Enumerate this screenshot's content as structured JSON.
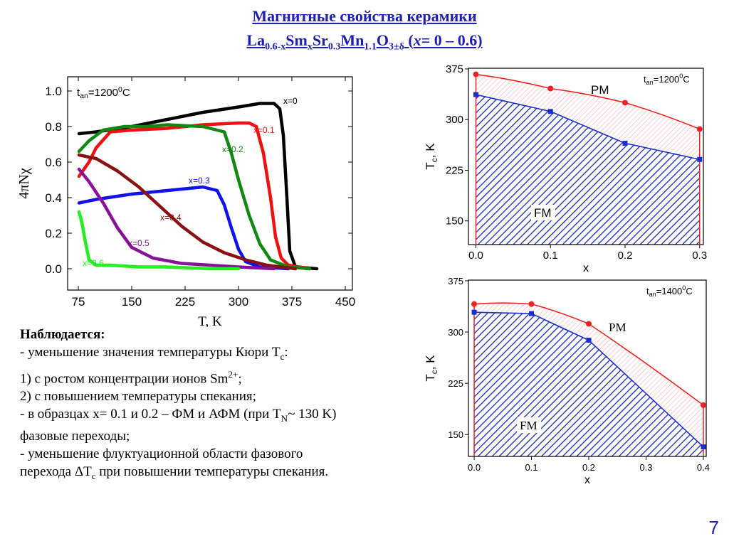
{
  "title": {
    "line1": "Магнитные  свойства керамики",
    "f_la": "La",
    "f_la_sub": "0.6-x",
    "f_sm": "Sm",
    "f_sm_sub": "x",
    "f_sr": "Sr",
    "f_sr_sub": "0.3",
    "f_mn": "Mn",
    "f_mn_sub": "1.1",
    "f_o": "O",
    "f_o_sub": "3±δ",
    "range_open": " (",
    "range_var": "x",
    "range_text": "= 0 – 0.6)"
  },
  "notes": {
    "heading": "Наблюдается:",
    "l1": "- уменьшение значения температуры Кюри T",
    "l1_sub": "c",
    "l1_end": ":",
    "l2": "1)   с ростом концентрации ионов Sm",
    "l2_sup": "2+",
    "l2_end": ";",
    "l3": "2)   с повышением температуры спекания;",
    "l4": "- в образцах x= 0.1 и 0.2 – ФМ и АФМ (при T",
    "l4_sub": "N",
    "l4_end": "~ 130 K)",
    "l5": "фазовые переходы;",
    "l6": "- уменьшение флуктуационной области фазового",
    "l7": "перехода ΔT",
    "l7_sub": "c",
    "l7_end": " при повышении температуры спекания."
  },
  "page_number": "7",
  "chart_data": [
    {
      "type": "line",
      "xlabel": "T, K",
      "ylabel": "4πNχ",
      "annotation": "t_an=1200°C",
      "annotation_main": "t",
      "annotation_sub": "an",
      "annotation_rest": "=1200",
      "annotation_sup": "0",
      "annotation_unit": "C",
      "xlim": [
        60,
        460
      ],
      "ylim": [
        -0.12,
        1.08
      ],
      "xticks": [
        "75",
        "150",
        "225",
        "300",
        "375",
        "450"
      ],
      "yticks": [
        "0.0",
        "0.2",
        "0.4",
        "0.6",
        "0.8",
        "1.0"
      ],
      "series": [
        {
          "name": "x=0",
          "color": "#000000",
          "x": [
            76,
            100,
            150,
            200,
            250,
            300,
            330,
            350,
            358,
            363,
            368,
            372,
            380,
            410
          ],
          "y": [
            0.76,
            0.77,
            0.8,
            0.84,
            0.88,
            0.91,
            0.93,
            0.93,
            0.9,
            0.75,
            0.4,
            0.1,
            0.01,
            0.0
          ]
        },
        {
          "name": "x=0.1",
          "color": "#ee1111",
          "x": [
            76,
            90,
            100,
            120,
            150,
            200,
            250,
            300,
            315,
            325,
            335,
            345,
            352,
            360,
            370,
            400
          ],
          "y": [
            0.52,
            0.6,
            0.68,
            0.77,
            0.78,
            0.79,
            0.81,
            0.82,
            0.82,
            0.8,
            0.65,
            0.4,
            0.18,
            0.06,
            0.02,
            0.0
          ]
        },
        {
          "name": "x=0.2",
          "color": "#118811",
          "x": [
            76,
            90,
            110,
            140,
            170,
            200,
            250,
            280,
            290,
            300,
            315,
            330,
            345,
            370,
            400
          ],
          "y": [
            0.66,
            0.72,
            0.78,
            0.8,
            0.8,
            0.81,
            0.8,
            0.77,
            0.65,
            0.5,
            0.3,
            0.14,
            0.05,
            0.01,
            0.0
          ]
        },
        {
          "name": "x=0.3",
          "color": "#1111ee",
          "x": [
            76,
            100,
            150,
            200,
            250,
            270,
            280,
            290,
            300,
            310,
            330,
            370
          ],
          "y": [
            0.37,
            0.39,
            0.42,
            0.44,
            0.46,
            0.44,
            0.36,
            0.23,
            0.11,
            0.04,
            0.01,
            0.0
          ]
        },
        {
          "name": "x=0.4",
          "color": "#881111",
          "x": [
            76,
            100,
            130,
            160,
            190,
            220,
            250,
            280,
            310,
            340,
            380
          ],
          "y": [
            0.64,
            0.62,
            0.55,
            0.46,
            0.35,
            0.24,
            0.15,
            0.09,
            0.05,
            0.02,
            0.0
          ]
        },
        {
          "name": "x=0.5",
          "color": "#881199",
          "x": [
            76,
            90,
            110,
            130,
            150,
            180,
            220,
            260,
            300,
            350
          ],
          "y": [
            0.56,
            0.49,
            0.37,
            0.23,
            0.12,
            0.06,
            0.03,
            0.02,
            0.01,
            0.0
          ]
        },
        {
          "name": "x=0.6",
          "color": "#22ee22",
          "x": [
            76,
            80,
            85,
            90,
            100,
            120,
            160,
            200,
            260,
            300
          ],
          "y": [
            0.32,
            0.26,
            0.15,
            0.05,
            0.02,
            0.02,
            0.01,
            0.01,
            0.0,
            0.0
          ]
        }
      ]
    },
    {
      "type": "line",
      "xlabel": "x",
      "ylabel": "T_c, K",
      "ylabel_main": "T",
      "ylabel_sub": "c",
      "ylabel_rest": ", K",
      "annotation": "t_an=1200°C",
      "annotation_main": "t",
      "annotation_sub": "an",
      "annotation_rest": "=1200",
      "annotation_sup": "0",
      "annotation_unit": "C",
      "region_labels": [
        "PM",
        "FM"
      ],
      "xlim": [
        -0.01,
        0.305
      ],
      "ylim": [
        115,
        376
      ],
      "xticks": [
        "0.0",
        "0.1",
        "0.2",
        "0.3"
      ],
      "yticks": [
        "150",
        "225",
        "300",
        "375"
      ],
      "series": [
        {
          "name": "",
          "color": "#ee2222",
          "x": [
            0,
            0.1,
            0.2,
            0.3
          ],
          "y": [
            367,
            346,
            325,
            286
          ]
        },
        {
          "name": "",
          "color": "#1a2fd0",
          "x": [
            0,
            0.1,
            0.2,
            0.3
          ],
          "y": [
            337,
            312,
            265,
            241
          ]
        }
      ]
    },
    {
      "type": "line",
      "xlabel": "x",
      "ylabel": "T_c, K",
      "ylabel_main": "T",
      "ylabel_sub": "c",
      "ylabel_rest": ", K",
      "annotation": "t_an=1400°C",
      "annotation_main": "t",
      "annotation_sub": "an",
      "annotation_rest": "=1400",
      "annotation_sup": "0",
      "annotation_unit": "C",
      "region_labels": [
        "PM",
        "FM"
      ],
      "xlim": [
        -0.01,
        0.405
      ],
      "ylim": [
        118,
        376
      ],
      "xticks": [
        "0.0",
        "0.1",
        "0.2",
        "0.3",
        "0.4"
      ],
      "yticks": [
        "150",
        "225",
        "300",
        "375"
      ],
      "series": [
        {
          "name": "",
          "color": "#ee2222",
          "x": [
            0,
            0.1,
            0.2,
            0.4
          ],
          "y": [
            341,
            341,
            312,
            193
          ]
        },
        {
          "name": "",
          "color": "#1a2fd0",
          "x": [
            0,
            0.1,
            0.2,
            0.4
          ],
          "y": [
            329,
            327,
            288,
            132
          ]
        }
      ]
    }
  ]
}
